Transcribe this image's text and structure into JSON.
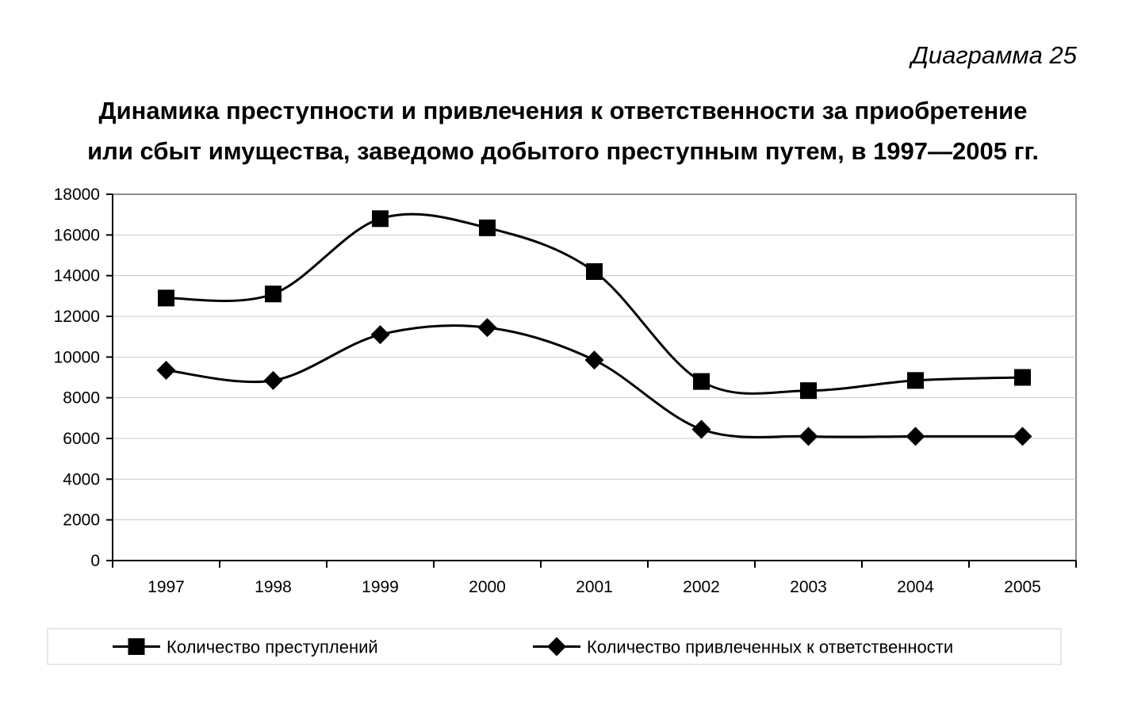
{
  "header": {
    "diagram_number": "Диаграмма 25",
    "title_line1": "Динамика преступности и привлечения к ответственности за приобретение",
    "title_line2": "или сбыт имущества, заведомо добытого преступным путем, в 1997—2005 гг."
  },
  "chart_data": {
    "type": "line",
    "title": "Динамика преступности и привлечения к ответственности за приобретение или сбыт имущества, заведомо добытого преступным путем, в 1997—2005 гг.",
    "xlabel": "",
    "ylabel": "",
    "categories": [
      "1997",
      "1998",
      "1999",
      "2000",
      "2001",
      "2002",
      "2003",
      "2004",
      "2005"
    ],
    "ylim": [
      0,
      18000
    ],
    "yticks": [
      0,
      2000,
      4000,
      6000,
      8000,
      10000,
      12000,
      14000,
      16000,
      18000
    ],
    "ytick_labels": [
      "0",
      "2000",
      "4000",
      "6000",
      "8000",
      "10000",
      "12000",
      "14000",
      "16000",
      "18000"
    ],
    "grid": "horizontal",
    "smooth": true,
    "legend_position": "bottom",
    "series": [
      {
        "name": "Количество преступлений",
        "marker": "square",
        "values": [
          12900,
          13100,
          16800,
          16350,
          14200,
          8800,
          8350,
          8850,
          9000
        ]
      },
      {
        "name": "Количество привлеченных к ответственности",
        "marker": "diamond",
        "values": [
          9350,
          8850,
          11100,
          11450,
          9850,
          6450,
          6100,
          6100,
          6100
        ]
      }
    ]
  }
}
